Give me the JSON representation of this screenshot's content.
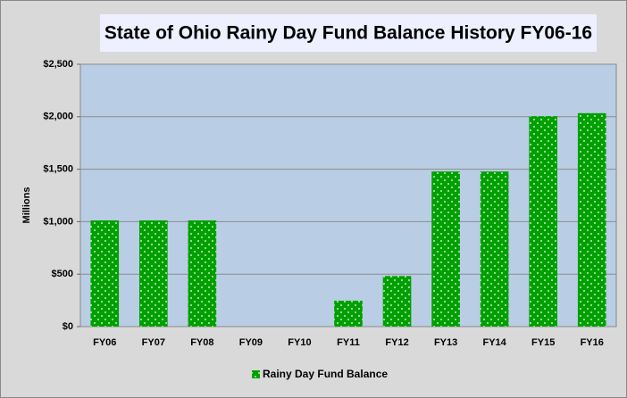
{
  "chart_data": {
    "type": "bar",
    "title": "State of Ohio Rainy Day Fund Balance History FY06-16",
    "y_label": "Millions",
    "categories": [
      "FY06",
      "FY07",
      "FY08",
      "FY09",
      "FY10",
      "FY11",
      "FY12",
      "FY13",
      "FY14",
      "FY15",
      "FY16"
    ],
    "series": [
      {
        "name": "Rainy Day Fund Balance",
        "color": "#00a000",
        "values": [
          1012,
          1012,
          1012,
          0,
          0,
          247,
          482,
          1478,
          1478,
          2005,
          2034
        ]
      }
    ],
    "ylim": [
      0,
      2500
    ],
    "yticks": [
      {
        "value": 0,
        "label": "$0"
      },
      {
        "value": 500,
        "label": "$500"
      },
      {
        "value": 1000,
        "label": "$1,000"
      },
      {
        "value": 1500,
        "label": "$1,500"
      },
      {
        "value": 2000,
        "label": "$2,000"
      },
      {
        "value": 2500,
        "label": "$2,500"
      }
    ],
    "grid": true,
    "legend": "bottom"
  }
}
